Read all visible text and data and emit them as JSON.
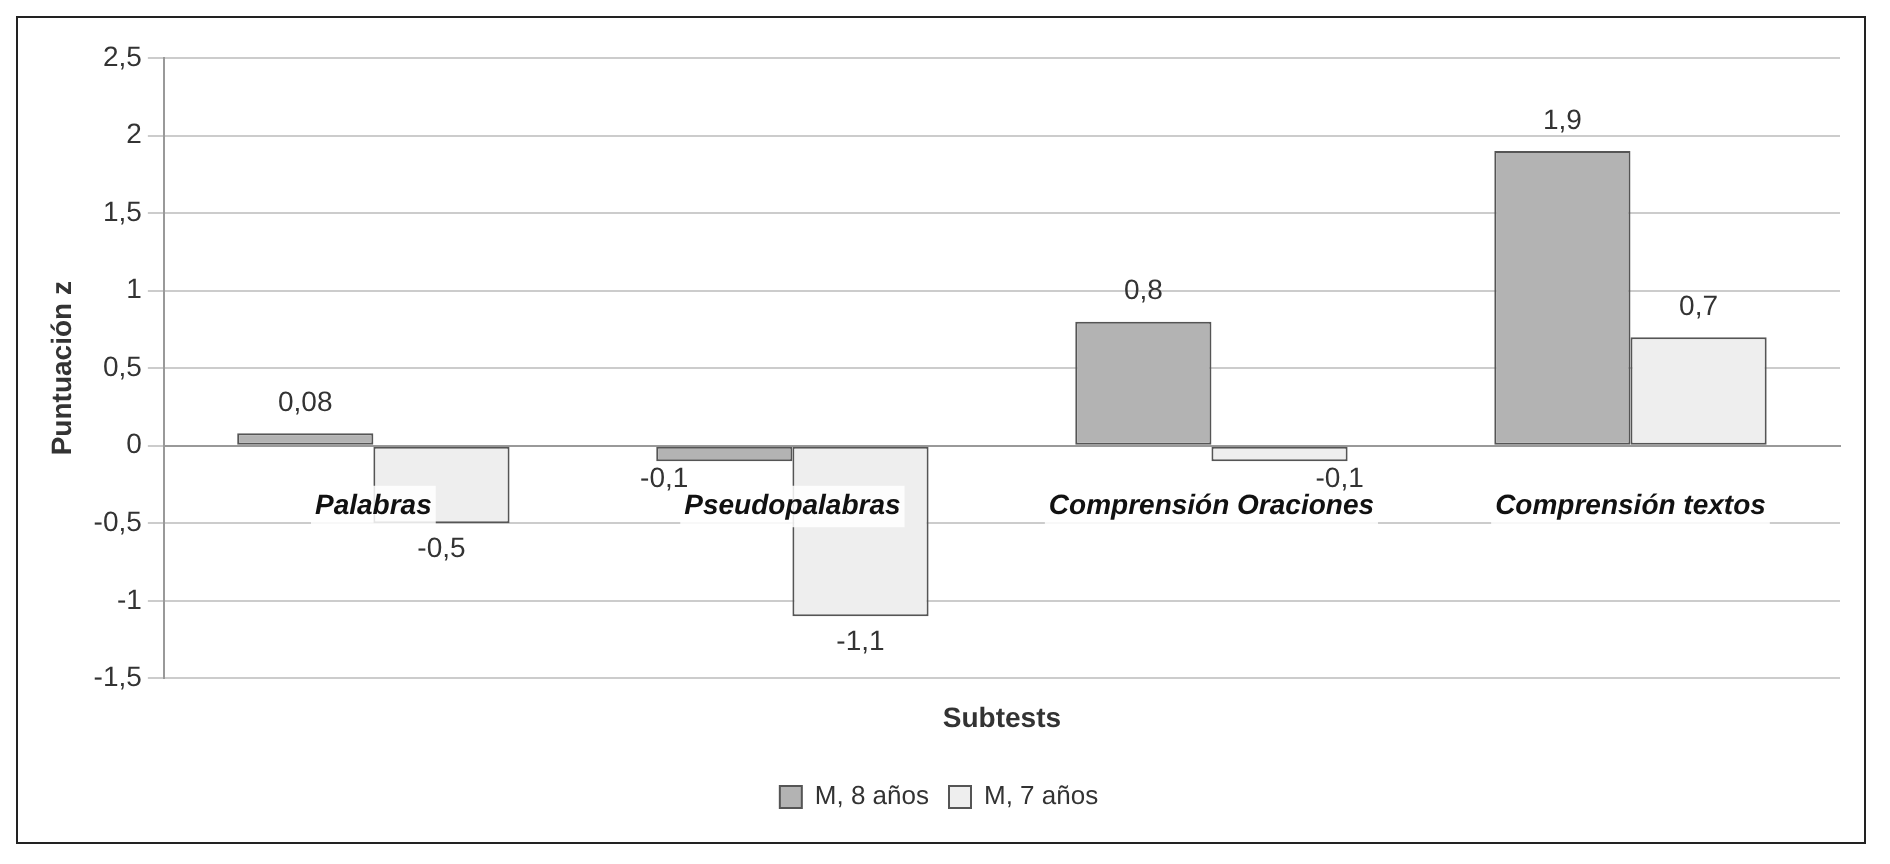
{
  "chart_data": {
    "type": "bar",
    "xlabel": "Subtests",
    "ylabel": "Puntuación z",
    "categories": [
      "Palabras",
      "Pseudopalabras",
      "Comprensión Oraciones",
      "Comprensión textos"
    ],
    "series": [
      {
        "name": "M, 8 años",
        "color": "#b3b3b3",
        "values": [
          0.08,
          -0.1,
          0.8,
          1.9
        ],
        "value_labels": [
          "0,08",
          "-0,1",
          "0,8",
          "1,9"
        ]
      },
      {
        "name": "M, 7 años",
        "color": "#eeeeee",
        "values": [
          -0.5,
          -1.1,
          -0.1,
          0.7
        ],
        "value_labels": [
          "-0,5",
          "-1,1",
          "-0,1",
          "0,7"
        ]
      }
    ],
    "ylim": [
      -1.5,
      2.5
    ],
    "yticks": [
      {
        "value": -1.5,
        "label": "-1,5"
      },
      -1,
      {
        "value": -0.5,
        "label": "-0,5"
      },
      0,
      {
        "value": 0.5,
        "label": "0,5"
      },
      1,
      {
        "value": 1.5,
        "label": "1,5"
      },
      2,
      {
        "value": 2.5,
        "label": "2,5"
      }
    ],
    "grid": "y",
    "legend": "bottom"
  }
}
